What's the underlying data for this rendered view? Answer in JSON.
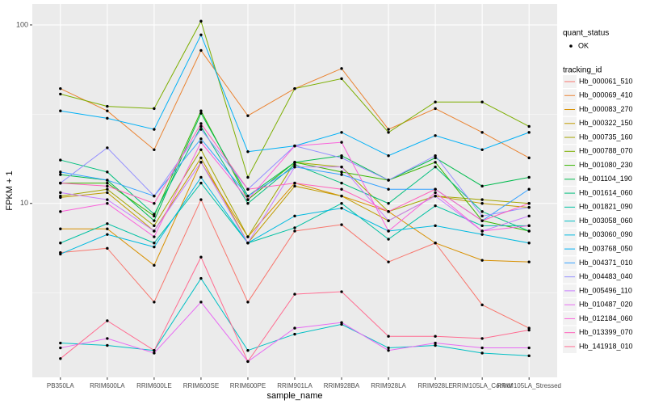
{
  "chart_data": {
    "type": "line",
    "x_label": "sample_name",
    "y_label": "FPKM + 1",
    "log_y": true,
    "grid": true,
    "categories": [
      "PB350LA",
      "RRIM600LA",
      "RRIM600LE",
      "RRIM600SE",
      "RRIM600PE",
      "RRIM901LA",
      "RRIM928BA",
      "RRIM928LA",
      "RRIM928LE",
      "RRIM105LA_Control",
      "RRIM105LA_Stressed"
    ],
    "ylim": [
      1.06,
      131
    ],
    "yticks": [
      10,
      100
    ],
    "point_legend": {
      "title": "quant_status",
      "labels": [
        "OK"
      ],
      "color": "#000000"
    },
    "legend_title": "tracking_id",
    "series": [
      {
        "name": "Hb_000061_510",
        "color": "#F8766D",
        "values": [
          5.3,
          5.6,
          2.8,
          10.5,
          2.8,
          7,
          7.6,
          4.7,
          6,
          2.7,
          2.0
        ]
      },
      {
        "name": "Hb_000069_410",
        "color": "#EA8331",
        "values": [
          44,
          33,
          20,
          72,
          31,
          44,
          57,
          26,
          34,
          25,
          18
        ]
      },
      {
        "name": "Hb_000083_270",
        "color": "#D89000",
        "values": [
          7.2,
          7.2,
          4.5,
          17,
          6.5,
          13,
          11,
          9,
          6,
          4.8,
          4.7
        ]
      },
      {
        "name": "Hb_000322_150",
        "color": "#C09B00",
        "values": [
          10.8,
          11.5,
          7,
          18,
          6,
          12.5,
          11,
          8,
          11,
          10,
          9.5
        ]
      },
      {
        "name": "Hb_000735_160",
        "color": "#A3A500",
        "values": [
          11,
          12,
          7.5,
          20,
          6.5,
          17,
          16,
          9,
          11,
          10.5,
          10
        ]
      },
      {
        "name": "Hb_000788_070",
        "color": "#7CAE00",
        "values": [
          41,
          35,
          34,
          105,
          14,
          44,
          50,
          25,
          37,
          37,
          27
        ]
      },
      {
        "name": "Hb_001080_230",
        "color": "#39B600",
        "values": [
          13,
          13,
          8.5,
          33,
          10.5,
          17,
          15,
          13.5,
          17,
          8,
          7
        ]
      },
      {
        "name": "Hb_001104_190",
        "color": "#00BB4E",
        "values": [
          14.5,
          13.5,
          8,
          32,
          11,
          17,
          18.5,
          13.5,
          18,
          12.5,
          14
        ]
      },
      {
        "name": "Hb_001614_060",
        "color": "#00BF7D",
        "values": [
          17.5,
          15,
          8.7,
          27,
          10,
          16.5,
          13,
          10,
          16,
          9,
          7
        ]
      },
      {
        "name": "Hb_001821_090",
        "color": "#00C1A3",
        "values": [
          6,
          7.7,
          6,
          13,
          6,
          7.3,
          10,
          6.3,
          9.7,
          7.5,
          7.5
        ]
      },
      {
        "name": "Hb_003058_060",
        "color": "#00BFC4",
        "values": [
          1.65,
          1.6,
          1.5,
          3.8,
          1.5,
          1.85,
          2.1,
          1.55,
          1.6,
          1.45,
          1.4
        ]
      },
      {
        "name": "Hb_003060_090",
        "color": "#00BAE0",
        "values": [
          5.2,
          6.7,
          5.7,
          14,
          6,
          8.5,
          9.4,
          7,
          7.5,
          6.7,
          6
        ]
      },
      {
        "name": "Hb_003768_050",
        "color": "#00B0F6",
        "values": [
          33,
          30,
          26,
          88,
          19.5,
          21,
          25,
          18.5,
          24,
          20,
          25
        ]
      },
      {
        "name": "Hb_004371_010",
        "color": "#35A2FF",
        "values": [
          15,
          13.5,
          11,
          23,
          11,
          16,
          14.5,
          12,
          12,
          8,
          12
        ]
      },
      {
        "name": "Hb_004483_040",
        "color": "#9590FF",
        "values": [
          13,
          20.5,
          11,
          26,
          12,
          21,
          18,
          13.5,
          18.5,
          8.5,
          9.5
        ]
      },
      {
        "name": "Hb_005496_110",
        "color": "#C77CFF",
        "values": [
          11.5,
          10.5,
          7,
          17,
          6,
          16,
          16,
          8,
          11,
          7,
          8.5
        ]
      },
      {
        "name": "Hb_010487_020",
        "color": "#E76BF3",
        "values": [
          1.55,
          1.75,
          1.45,
          2.8,
          1.3,
          2.0,
          2.15,
          1.5,
          1.65,
          1.55,
          1.55
        ]
      },
      {
        "name": "Hb_012184_060",
        "color": "#FA62DB",
        "values": [
          9,
          10,
          6.5,
          22,
          10.5,
          21,
          22,
          7,
          11.5,
          7,
          7.5
        ]
      },
      {
        "name": "Hb_013399_070",
        "color": "#FF62BC",
        "values": [
          13,
          12.5,
          10,
          28,
          12,
          13,
          12,
          9,
          12,
          8,
          10
        ]
      },
      {
        "name": "Hb_141918_010",
        "color": "#FF6C91",
        "values": [
          1.35,
          2.2,
          1.5,
          5.0,
          1.3,
          3.1,
          3.2,
          1.8,
          1.8,
          1.75,
          1.95
        ]
      }
    ]
  }
}
